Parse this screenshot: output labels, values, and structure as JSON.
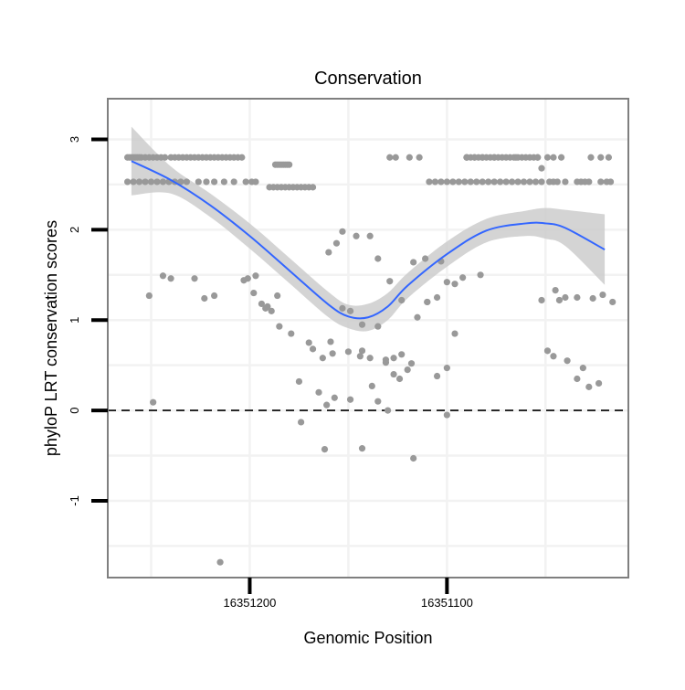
{
  "chart_data": {
    "type": "scatter",
    "title": "Conservation",
    "xlabel": "Genomic Position",
    "ylabel": "phyloP LRT conservation scores",
    "x_reversed": true,
    "xlim": [
      16351272,
      16351008
    ],
    "ylim": [
      -1.85,
      3.45
    ],
    "x_ticks": [
      16351200,
      16351100
    ],
    "x_tick_labels": [
      "16351200",
      "16351100"
    ],
    "y_ticks": [
      -1,
      0,
      1,
      2,
      3
    ],
    "y_tick_labels": [
      "-1",
      "0",
      "1",
      "2",
      "3"
    ],
    "reference_line": {
      "y": 0,
      "style": "dashed",
      "color": "#000000"
    },
    "grid": true,
    "colors": {
      "points": "#999999",
      "smooth": "#3366FF",
      "band": "#cccccc",
      "frame": "#7f7f7f"
    },
    "series": [
      {
        "type": "smooth",
        "x": [
          16351260,
          16351240,
          16351220,
          16351200,
          16351180,
          16351160,
          16351150,
          16351140,
          16351130,
          16351120,
          16351100,
          16351080,
          16351060,
          16351050,
          16351040,
          16351020
        ],
        "y": [
          2.76,
          2.55,
          2.27,
          1.93,
          1.55,
          1.17,
          1.04,
          1.03,
          1.15,
          1.38,
          1.73,
          1.99,
          2.07,
          2.07,
          2.02,
          1.78
        ]
      },
      {
        "type": "band",
        "x": [
          16351260,
          16351240,
          16351220,
          16351200,
          16351180,
          16351160,
          16351150,
          16351140,
          16351130,
          16351120,
          16351100,
          16351080,
          16351060,
          16351050,
          16351040,
          16351020
        ],
        "lower": [
          2.38,
          2.4,
          2.14,
          1.79,
          1.41,
          1.03,
          0.91,
          0.88,
          1.0,
          1.24,
          1.59,
          1.86,
          1.93,
          1.9,
          1.82,
          1.39
        ],
        "upper": [
          3.14,
          2.7,
          2.4,
          2.07,
          1.69,
          1.31,
          1.17,
          1.18,
          1.3,
          1.52,
          1.87,
          2.12,
          2.21,
          2.24,
          2.22,
          2.17
        ]
      },
      {
        "type": "points",
        "x": [
          16351262,
          16351261,
          16351260,
          16351259,
          16351258,
          16351257,
          16351256,
          16351255,
          16351253,
          16351251,
          16351249,
          16351247,
          16351245,
          16351243,
          16351240,
          16351238,
          16351236,
          16351234,
          16351232,
          16351230,
          16351228,
          16351226,
          16351224,
          16351222,
          16351220,
          16351218,
          16351216,
          16351214,
          16351212,
          16351210,
          16351208,
          16351206,
          16351204,
          16351262,
          16351259,
          16351256,
          16351253,
          16351250,
          16351247,
          16351244,
          16351241,
          16351238,
          16351235,
          16351232,
          16351226,
          16351222,
          16351218,
          16351213,
          16351208,
          16351202,
          16351199,
          16351197,
          16351187,
          16351186,
          16351185,
          16351184,
          16351183,
          16351182,
          16351181,
          16351180,
          16351190,
          16351188,
          16351186,
          16351184,
          16351182,
          16351180,
          16351178,
          16351176,
          16351174,
          16351172,
          16351170,
          16351168,
          16351129,
          16351126,
          16351119,
          16351114,
          16351076,
          16351090,
          16351090,
          16351086,
          16351082,
          16351065,
          16351054,
          16351049,
          16351046,
          16351042,
          16351027,
          16351022,
          16351018,
          16351052,
          16351090,
          16351088,
          16351086,
          16351084,
          16351082,
          16351080,
          16351078,
          16351076,
          16351074,
          16351072,
          16351070,
          16351068,
          16351066,
          16351064,
          16351062,
          16351060,
          16351058,
          16351056,
          16351054,
          16351109,
          16351106,
          16351103,
          16351100,
          16351097,
          16351094,
          16351091,
          16351088,
          16351085,
          16351082,
          16351079,
          16351076,
          16351073,
          16351070,
          16351067,
          16351064,
          16351061,
          16351058,
          16351055,
          16351052,
          16351048,
          16351046,
          16351044,
          16351040,
          16351034,
          16351032,
          16351030,
          16351028,
          16351022,
          16351019,
          16351017,
          16351251,
          16351244,
          16351240,
          16351228,
          16351223,
          16351218,
          16351201,
          16351197,
          16351194,
          16351191,
          16351185,
          16351179,
          16351170,
          16351159,
          16351158,
          16351153,
          16351150,
          16351143,
          16351138,
          16351131,
          16351127,
          16351123,
          16351118,
          16351110,
          16351105,
          16351100,
          16351096,
          16351092,
          16351083,
          16351052,
          16351045,
          16351043,
          16351040,
          16351034,
          16351026,
          16351021,
          16351016,
          16351249,
          16351203,
          16351198,
          16351192,
          16351189,
          16351175,
          16351168,
          16351163,
          16351160,
          16351156,
          16351153,
          16351149,
          16351146,
          16351139,
          16351135,
          16351129,
          16351123,
          16351117,
          16351111,
          16351103,
          16351049,
          16351046,
          16351039,
          16351034,
          16351031,
          16351028,
          16351023,
          16351165,
          16351161,
          16351157,
          16351149,
          16351144,
          16351139,
          16351135,
          16351131,
          16351127,
          16351124,
          16351120,
          16351115,
          16351110,
          16351105,
          16351100,
          16351096,
          16351135,
          16351117,
          16351215,
          16351162,
          16351143,
          16351174,
          16351186,
          16351143,
          16351130,
          16351100
        ],
        "y": [
          2.8,
          2.8,
          2.8,
          2.8,
          2.8,
          2.8,
          2.8,
          2.8,
          2.8,
          2.8,
          2.8,
          2.8,
          2.8,
          2.8,
          2.8,
          2.8,
          2.8,
          2.8,
          2.8,
          2.8,
          2.8,
          2.8,
          2.8,
          2.8,
          2.8,
          2.8,
          2.8,
          2.8,
          2.8,
          2.8,
          2.8,
          2.8,
          2.8,
          2.53,
          2.53,
          2.53,
          2.53,
          2.53,
          2.53,
          2.53,
          2.53,
          2.53,
          2.53,
          2.53,
          2.53,
          2.53,
          2.53,
          2.53,
          2.53,
          2.53,
          2.53,
          2.53,
          2.72,
          2.72,
          2.72,
          2.72,
          2.72,
          2.72,
          2.72,
          2.72,
          2.47,
          2.47,
          2.47,
          2.47,
          2.47,
          2.47,
          2.47,
          2.47,
          2.47,
          2.47,
          2.47,
          2.47,
          2.8,
          2.8,
          2.8,
          2.8,
          2.8,
          2.8,
          2.8,
          2.8,
          2.8,
          2.8,
          2.8,
          2.8,
          2.8,
          2.8,
          2.8,
          2.8,
          2.8,
          2.68,
          2.8,
          2.8,
          2.8,
          2.8,
          2.8,
          2.8,
          2.8,
          2.8,
          2.8,
          2.8,
          2.8,
          2.8,
          2.8,
          2.8,
          2.8,
          2.8,
          2.8,
          2.8,
          2.8,
          2.53,
          2.53,
          2.53,
          2.53,
          2.53,
          2.53,
          2.53,
          2.53,
          2.53,
          2.53,
          2.53,
          2.53,
          2.53,
          2.53,
          2.53,
          2.53,
          2.53,
          2.53,
          2.53,
          2.53,
          2.53,
          2.53,
          2.53,
          2.53,
          2.53,
          2.53,
          2.53,
          2.53,
          2.53,
          2.53,
          2.53,
          1.27,
          1.49,
          1.46,
          1.46,
          1.24,
          1.27,
          1.46,
          1.49,
          1.18,
          1.15,
          0.93,
          0.85,
          0.75,
          0.76,
          0.63,
          1.13,
          0.65,
          0.66,
          0.27,
          0.53,
          0.4,
          0.62,
          0.52,
          1.2,
          1.25,
          1.42,
          1.4,
          1.47,
          1.5,
          1.22,
          1.33,
          1.22,
          1.25,
          1.25,
          1.24,
          1.28,
          1.2,
          0.09,
          1.44,
          1.3,
          1.13,
          1.1,
          0.32,
          0.68,
          0.58,
          1.75,
          1.85,
          1.98,
          1.1,
          1.93,
          1.93,
          1.68,
          1.43,
          1.22,
          1.64,
          1.68,
          1.65,
          0.66,
          0.6,
          0.55,
          0.35,
          0.47,
          0.26,
          0.3,
          0.2,
          0.06,
          0.14,
          0.12,
          0.6,
          0.58,
          0.1,
          0.56,
          0.58,
          0.35,
          0.45,
          1.03,
          1.2,
          0.38,
          0.47,
          0.85,
          0.93,
          -0.53,
          -1.68,
          -0.43,
          -0.42,
          -0.13,
          1.27,
          0.95,
          0.0,
          -0.05
        ]
      }
    ]
  }
}
